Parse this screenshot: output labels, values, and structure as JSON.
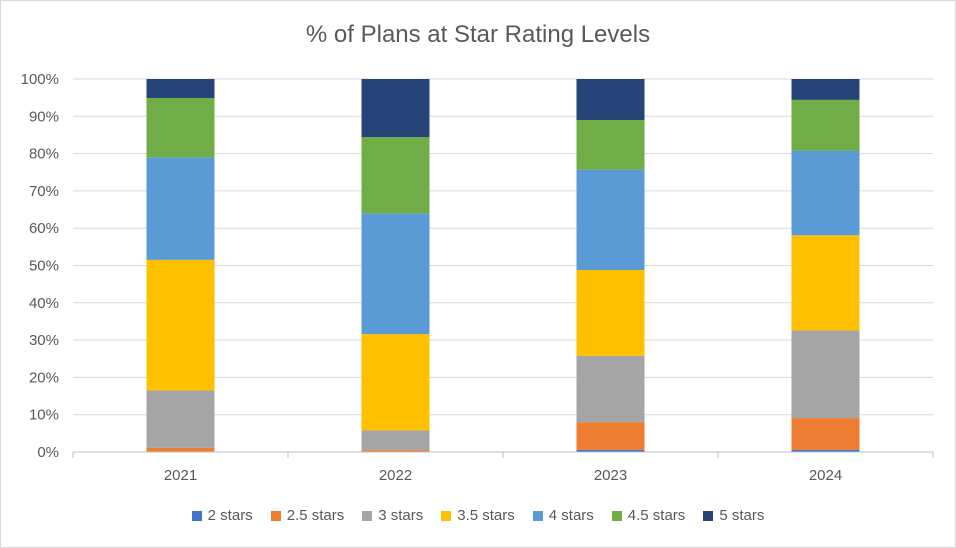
{
  "chart_data": {
    "type": "bar",
    "stacked": true,
    "title": "% of Plans at Star Rating Levels",
    "xlabel": "",
    "ylabel": "",
    "ylim": [
      0,
      100
    ],
    "y_ticks": [
      "0%",
      "10%",
      "20%",
      "30%",
      "40%",
      "50%",
      "60%",
      "70%",
      "80%",
      "90%",
      "100%"
    ],
    "y_tick_values": [
      0,
      10,
      20,
      30,
      40,
      50,
      60,
      70,
      80,
      90,
      100
    ],
    "categories": [
      "2021",
      "2022",
      "2023",
      "2024"
    ],
    "series": [
      {
        "name": "2 stars",
        "color": "#4472C4",
        "values": [
          0.0,
          0.0,
          0.6,
          0.6
        ]
      },
      {
        "name": "2.5 stars",
        "color": "#ED7D31",
        "values": [
          1.1,
          0.5,
          7.4,
          8.5
        ]
      },
      {
        "name": "3 stars",
        "color": "#A5A5A5",
        "values": [
          15.4,
          5.3,
          17.8,
          23.5
        ]
      },
      {
        "name": "3.5 stars",
        "color": "#FFC000",
        "values": [
          35.0,
          25.8,
          23.0,
          25.5
        ]
      },
      {
        "name": "4 stars",
        "color": "#5B9BD5",
        "values": [
          27.5,
          32.4,
          26.9,
          22.7
        ]
      },
      {
        "name": "4.5 stars",
        "color": "#70AD47",
        "values": [
          15.9,
          20.4,
          13.3,
          13.6
        ]
      },
      {
        "name": "5 stars",
        "color": "#264478",
        "values": [
          5.1,
          15.6,
          11.0,
          5.6
        ]
      }
    ],
    "legend_position": "bottom",
    "grid": true
  }
}
